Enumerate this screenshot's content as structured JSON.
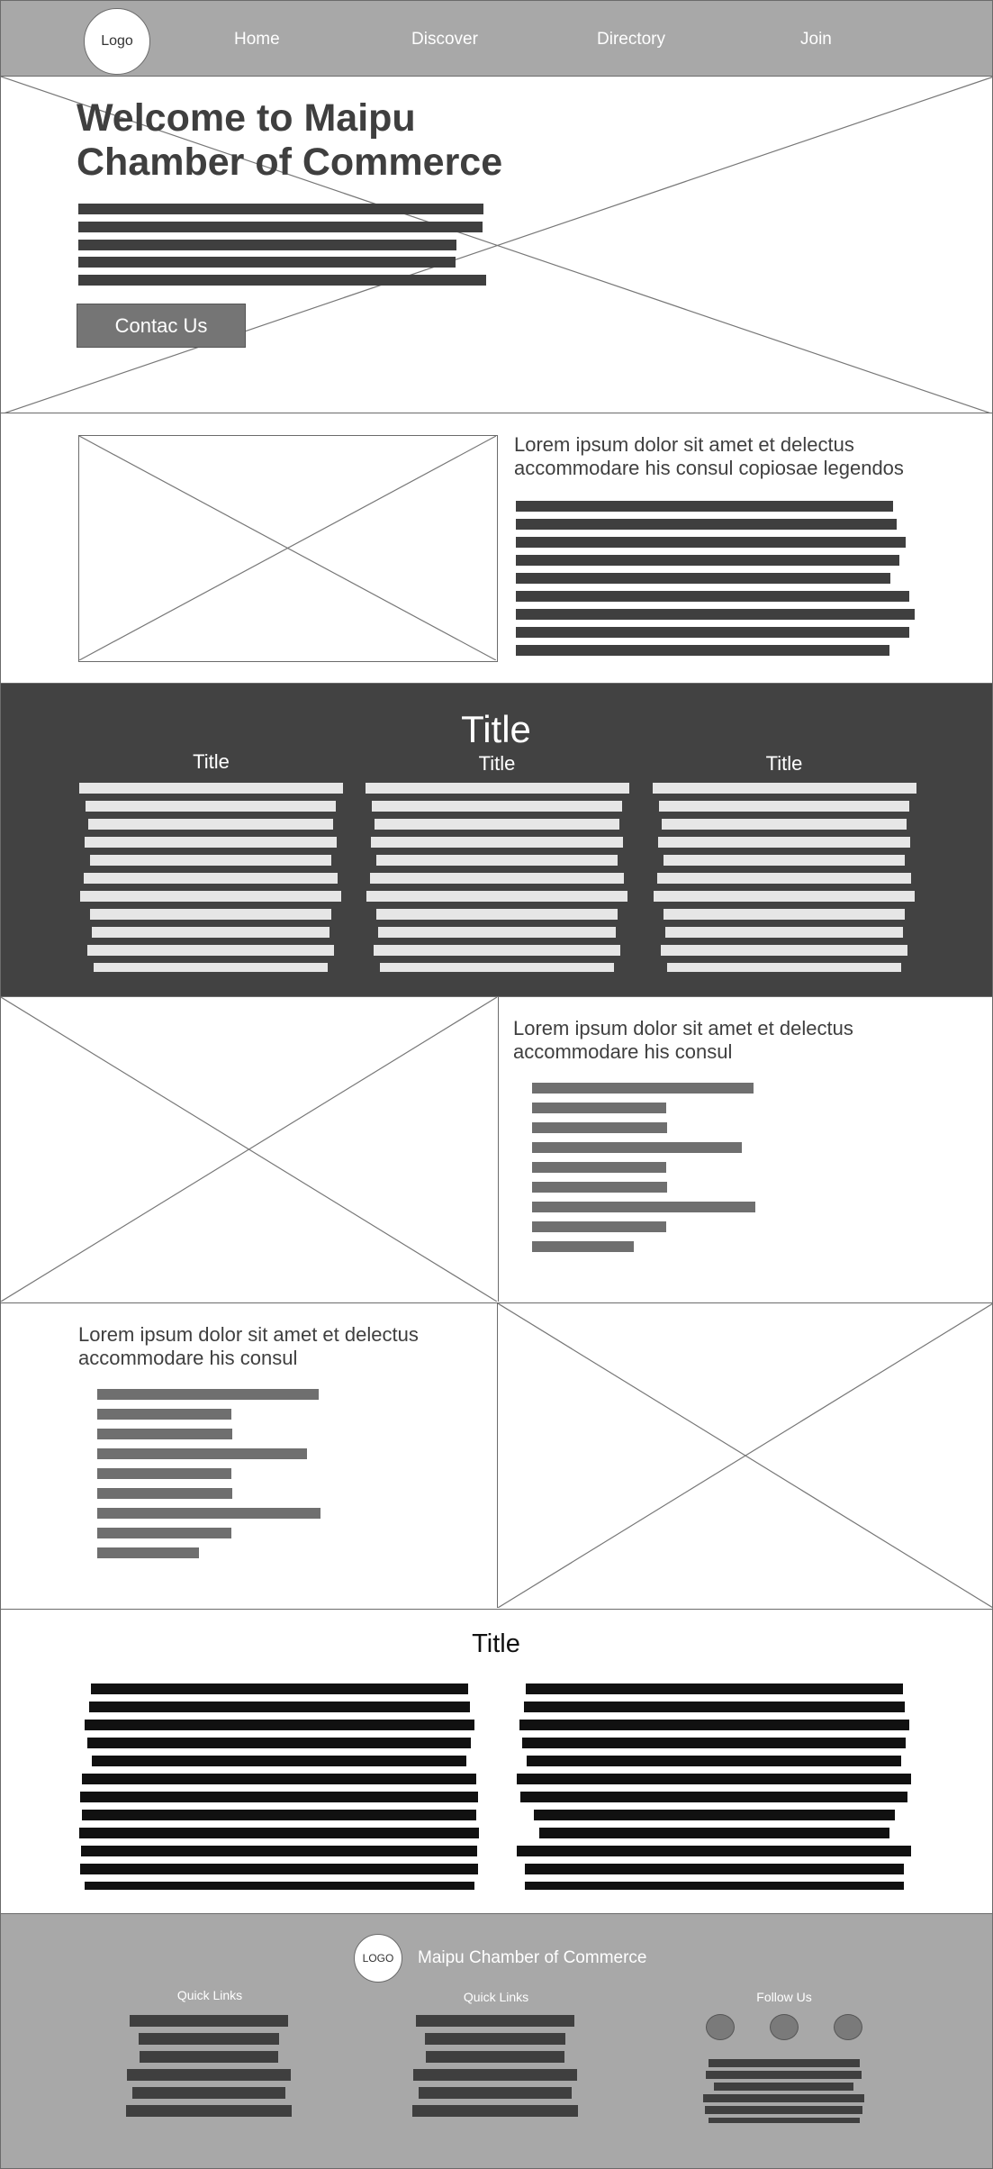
{
  "header": {
    "logo": "Logo",
    "nav": [
      "Home",
      "Discover",
      "Directory",
      "Join"
    ]
  },
  "hero": {
    "title_line1": "Welcome to Maipu",
    "title_line2": "Chamber of Commerce",
    "cta": "Contac Us"
  },
  "intro": {
    "heading_line1": "Lorem ipsum dolor sit amet et delectus",
    "heading_line2": "accommodare his consul copiosae legendos"
  },
  "columns": {
    "title": "Title",
    "col_titles": [
      "Title",
      "Title",
      "Title"
    ]
  },
  "feature1": {
    "heading_line1": "Lorem ipsum dolor sit amet et delectus",
    "heading_line2": "accommodare his consul"
  },
  "feature2": {
    "heading_line1": "Lorem ipsum dolor sit amet et delectus",
    "heading_line2": "accommodare his consul"
  },
  "text_section": {
    "title": "Title"
  },
  "footer": {
    "logo": "LOGO",
    "org_name": "Maipu Chamber of Commerce",
    "col_titles": [
      "Quick Links",
      "Quick Links",
      "Follow Us"
    ]
  },
  "colors": {
    "header_bg": "#a8a8a8",
    "dark_band": "#424242",
    "button_bg": "#757575"
  }
}
